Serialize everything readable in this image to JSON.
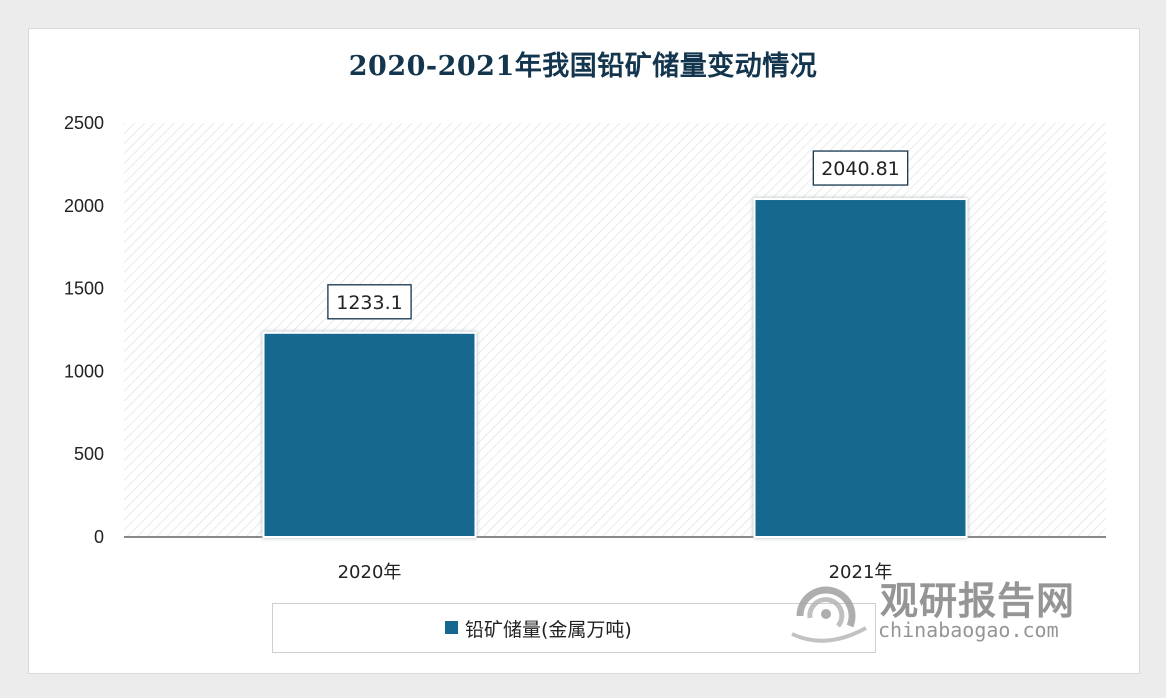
{
  "chart_data": {
    "type": "bar",
    "title": "2020-2021年我国铅矿储量变动情况",
    "categories": [
      "2020年",
      "2021年"
    ],
    "series": [
      {
        "name": "铅矿储量(金属万吨)",
        "values": [
          1233.1,
          2040.81
        ],
        "labels": [
          "1233.1",
          "2040.81"
        ]
      }
    ],
    "ylim": [
      0,
      2500
    ],
    "yticks": [
      "0",
      "500",
      "1000",
      "1500",
      "2000",
      "2500"
    ],
    "grid": false,
    "legend": "bottom",
    "colors": {
      "bar": "#17688f",
      "plot_hatch": "#dcdcdc",
      "title": "#13354d"
    }
  },
  "watermark": {
    "brand": "观研报告网",
    "url": "chinabaogao.com"
  }
}
